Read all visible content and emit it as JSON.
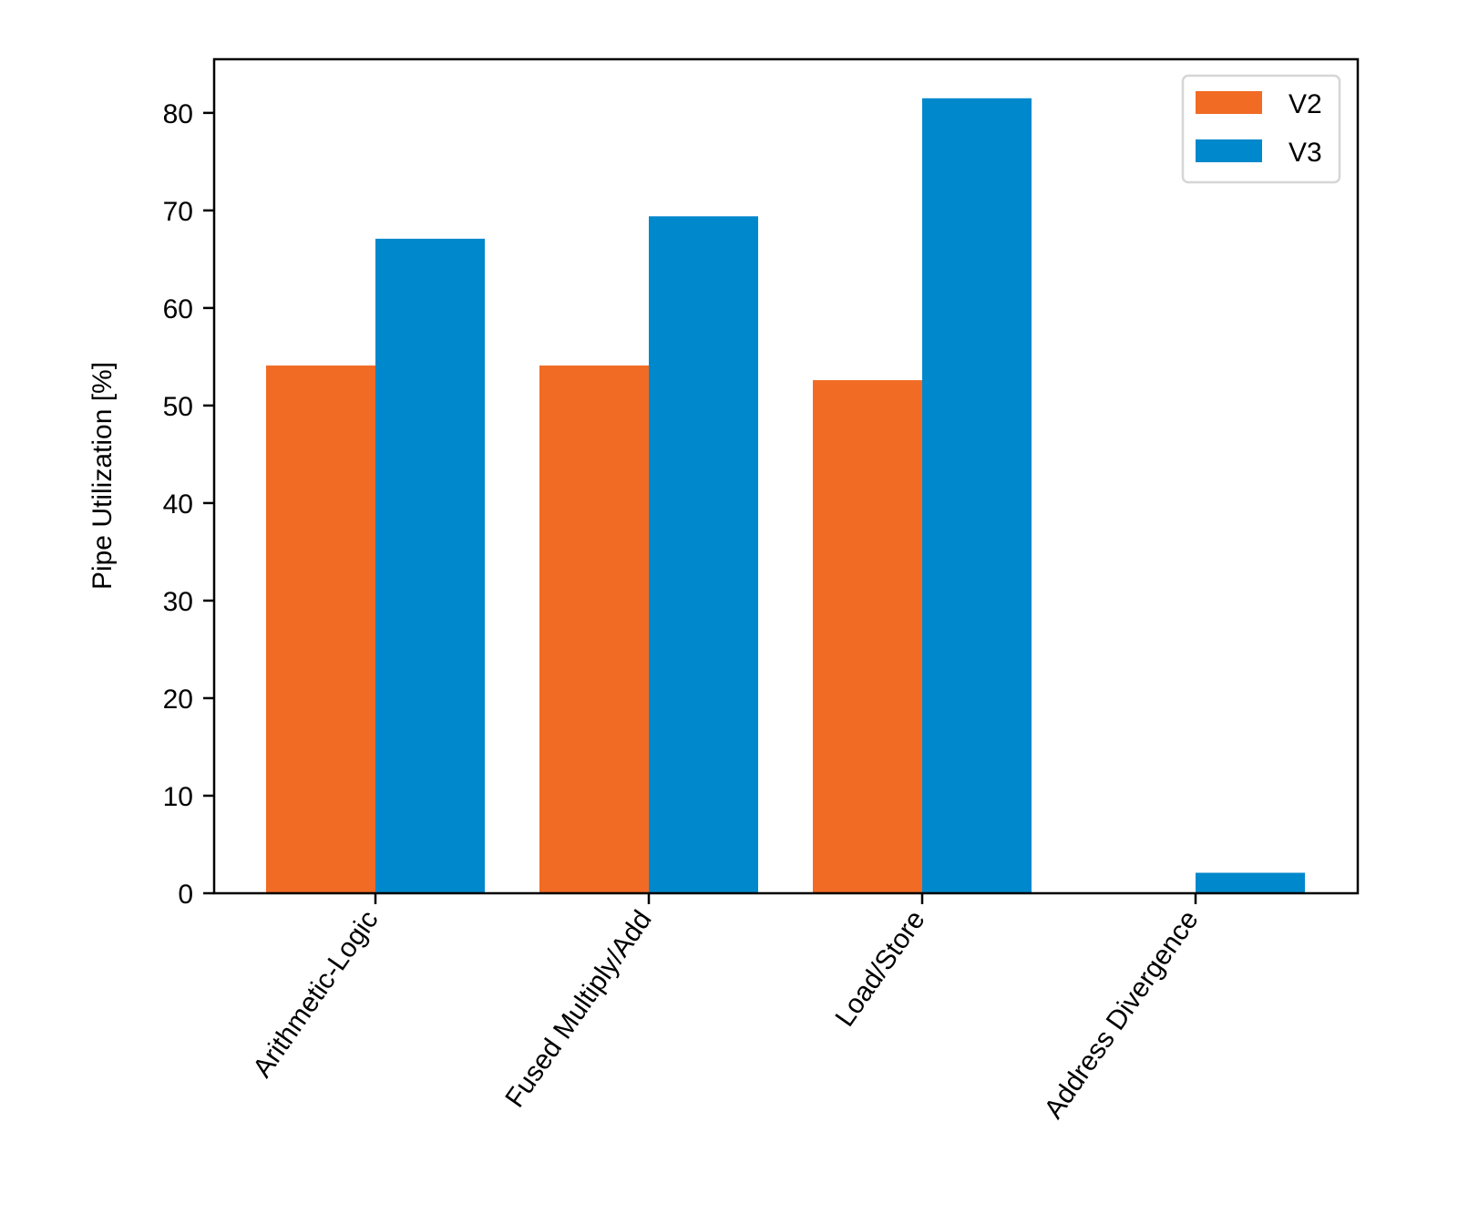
{
  "chart_data": {
    "type": "bar",
    "title": "",
    "xlabel": "",
    "ylabel": "Pipe Utilization [%]",
    "categories": [
      "Arithmetic-Logic",
      "Fused Multiply/Add",
      "Load/Store",
      "Address Divergence"
    ],
    "series": [
      {
        "name": "V2",
        "color": "#f16b24",
        "values": [
          54.1,
          54.1,
          52.6,
          0
        ]
      },
      {
        "name": "V3",
        "color": "#0088cc",
        "values": [
          67.1,
          69.4,
          81.5,
          2.1
        ]
      }
    ],
    "ylim": [
      0,
      85.5
    ],
    "yticks": [
      0,
      10,
      20,
      30,
      40,
      50,
      60,
      70,
      80
    ],
    "grid": false,
    "legend": "top-right"
  }
}
